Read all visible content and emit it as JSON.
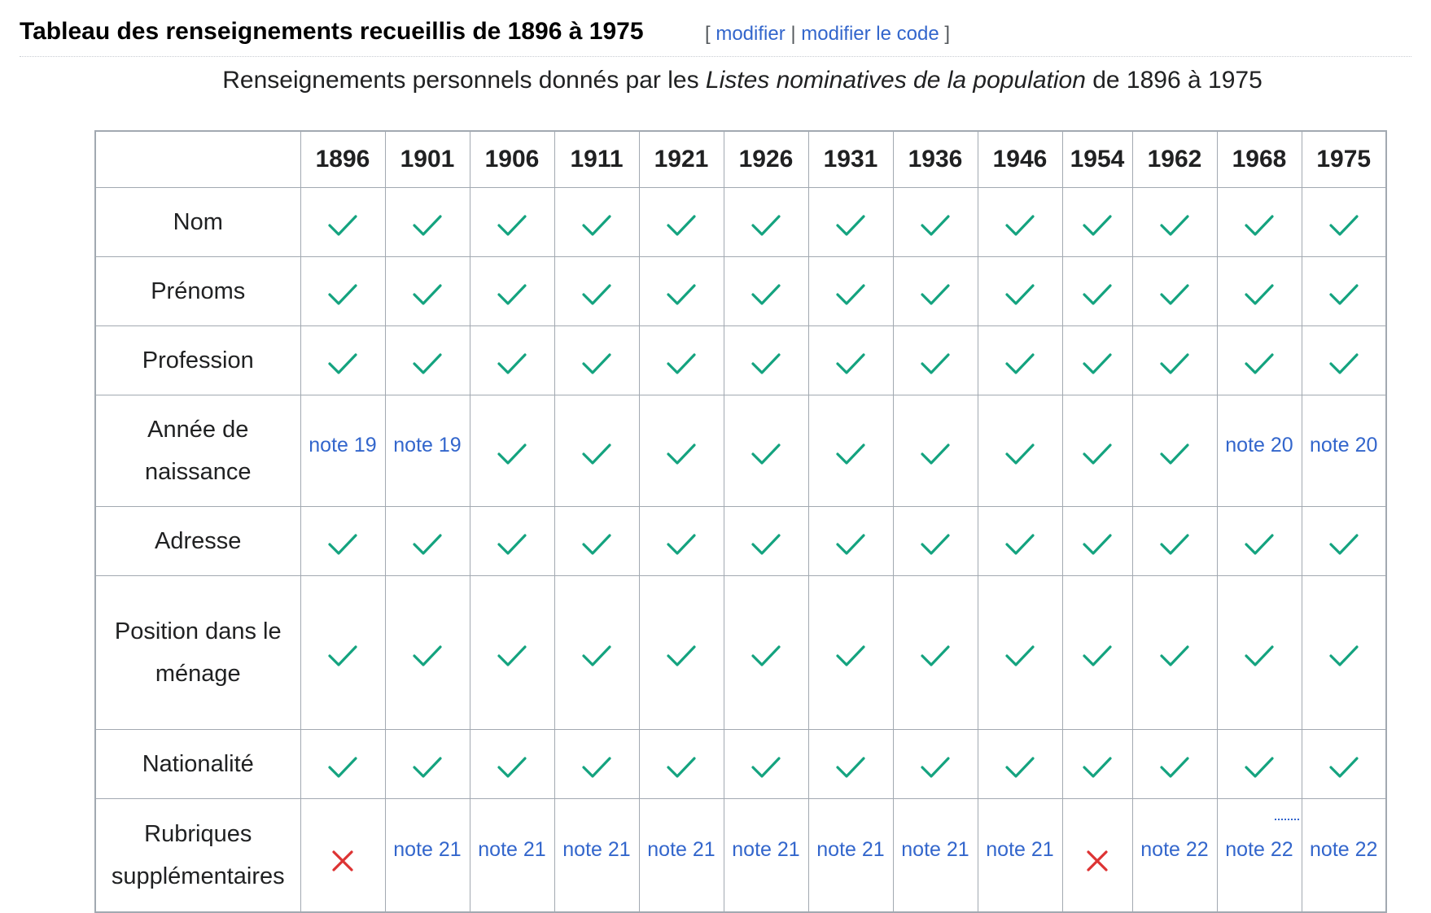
{
  "section": {
    "title": "Tableau des renseignements recueillis de 1896 à 1975",
    "bracket_open": "[",
    "edit_label": "modifier",
    "separator": "|",
    "edit_code_label": "modifier le code",
    "bracket_close": "]"
  },
  "caption": {
    "before": "Renseignements personnels donnés par les ",
    "italic": "Listes nominatives de la population",
    "after": " de 1896 à 1975"
  },
  "table": {
    "years": [
      "1896",
      "1901",
      "1906",
      "1911",
      "1921",
      "1926",
      "1931",
      "1936",
      "1946",
      "1954",
      "1962",
      "1968",
      "1975"
    ],
    "rows": [
      {
        "label": "Nom",
        "height": "h1",
        "cells": [
          "check",
          "check",
          "check",
          "check",
          "check",
          "check",
          "check",
          "check",
          "check",
          "check",
          "check",
          "check",
          "check"
        ]
      },
      {
        "label": "Prénoms",
        "height": "h1",
        "cells": [
          "check",
          "check",
          "check",
          "check",
          "check",
          "check",
          "check",
          "check",
          "check",
          "check",
          "check",
          "check",
          "check"
        ]
      },
      {
        "label": "Profession",
        "height": "h1",
        "cells": [
          "check",
          "check",
          "check",
          "check",
          "check",
          "check",
          "check",
          "check",
          "check",
          "check",
          "check",
          "check",
          "check"
        ]
      },
      {
        "label": "Année de naissance",
        "height": "h2",
        "cells": [
          "note 19",
          "note 19",
          "check",
          "check",
          "check",
          "check",
          "check",
          "check",
          "check",
          "check",
          "check",
          "note 20",
          "note 20"
        ]
      },
      {
        "label": "Adresse",
        "height": "h1",
        "cells": [
          "check",
          "check",
          "check",
          "check",
          "check",
          "check",
          "check",
          "check",
          "check",
          "check",
          "check",
          "check",
          "check"
        ]
      },
      {
        "label": "Position dans le ménage",
        "height": "h3",
        "cells": [
          "check",
          "check",
          "check",
          "check",
          "check",
          "check",
          "check",
          "check",
          "check",
          "check",
          "check",
          "check",
          "check"
        ]
      },
      {
        "label": "Nationalité",
        "height": "h1",
        "cells": [
          "check",
          "check",
          "check",
          "check",
          "check",
          "check",
          "check",
          "check",
          "check",
          "check",
          "check",
          "check",
          "check"
        ]
      },
      {
        "label": "Rubriques supplémentaires",
        "height": "h2b",
        "cells": [
          "cross",
          "note 21",
          "note 21",
          "note 21",
          "note 21",
          "note 21",
          "note 21",
          "note 21",
          "note 21",
          "cross",
          "note 22",
          "note 22",
          "note 22"
        ]
      }
    ]
  },
  "icons": {
    "check": "check-icon",
    "cross": "cross-icon"
  },
  "colors": {
    "check": "#14a37f",
    "cross": "#dd3333",
    "link": "#3366cc",
    "border": "#a2a9b1"
  }
}
